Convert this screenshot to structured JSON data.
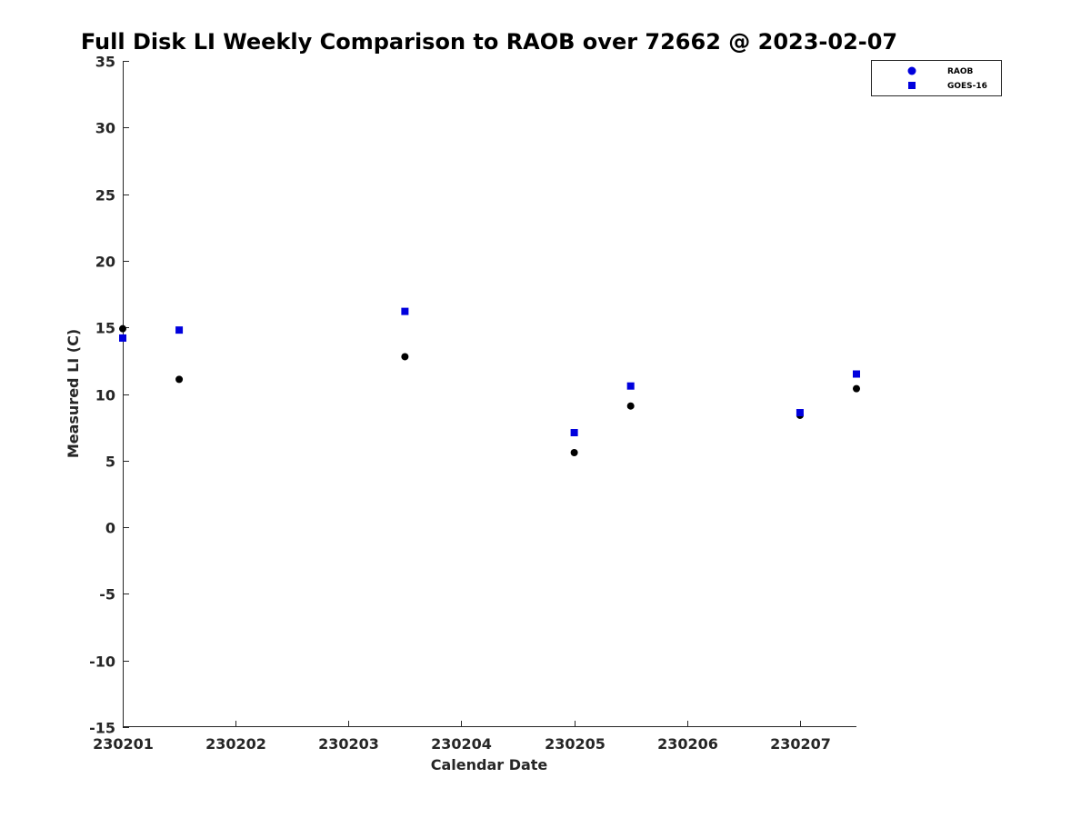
{
  "chart_data": {
    "type": "scatter",
    "title": "Full Disk LI Weekly Comparison to RAOB over 72662 @ 2023-02-07",
    "xlabel": "Calendar Date",
    "ylabel": "Measured LI (C)",
    "xlim": [
      0,
      6.5
    ],
    "ylim": [
      -15,
      35
    ],
    "x_ticks": [
      0,
      1,
      2,
      3,
      4,
      5,
      6
    ],
    "x_tick_labels": [
      "230201",
      "230202",
      "230203",
      "230204",
      "230205",
      "230206",
      "230207"
    ],
    "y_ticks": [
      -15,
      -10,
      -5,
      0,
      5,
      10,
      15,
      20,
      25,
      30,
      35
    ],
    "y_tick_labels": [
      "-15",
      "-10",
      "-5",
      "0",
      "5",
      "10",
      "15",
      "20",
      "25",
      "30",
      "35"
    ],
    "grid": false,
    "legend_position": "top-right",
    "series": [
      {
        "name": "RAOB",
        "marker": "circle",
        "color": "#000000",
        "x": [
          0,
          0.5,
          2.5,
          4,
          4.5,
          6,
          6.5
        ],
        "y": [
          14.9,
          11.1,
          12.8,
          5.6,
          9.1,
          8.4,
          10.4
        ]
      },
      {
        "name": "GOES-16",
        "marker": "square",
        "color": "#0000dd",
        "x": [
          0,
          0.5,
          2.5,
          4,
          4.5,
          6,
          6.5
        ],
        "y": [
          14.2,
          14.8,
          16.2,
          7.1,
          10.6,
          8.6,
          11.5
        ]
      }
    ],
    "legend_marker_colors": {
      "RAOB": "#0000dd",
      "GOES-16": "#0000dd"
    }
  }
}
